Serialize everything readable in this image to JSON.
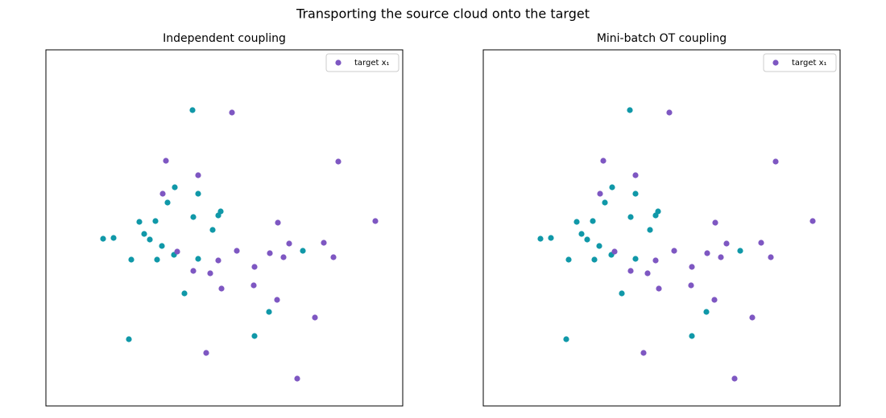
{
  "title": "Transporting the source cloud onto the target",
  "chart_data": [
    {
      "type": "scatter",
      "title": "Independent coupling",
      "xlim": [
        0,
        443
      ],
      "ylim": [
        0,
        443
      ],
      "legend": "upper right",
      "series": [
        {
          "color": "#1098a8",
          "x": [
            182,
            160,
            189,
            151,
            183,
            217,
            214,
            116,
            136,
            207,
            122,
            71,
            84,
            129,
            144,
            159,
            319,
            106,
            138,
            189,
            172,
            277,
            259,
            103
          ],
          "values": [
            368,
            272,
            264,
            253,
            235,
            242,
            237,
            229,
            230,
            219,
            214,
            208,
            209,
            207,
            199,
            188,
            193,
            182,
            182,
            183,
            140,
            117,
            87,
            83
          ]
        },
        {
          "name": "target x₁",
          "color": "#7e57c2",
          "x": [
            231,
            149,
            363,
            189,
            145,
            409,
            288,
            302,
            345,
            237,
            163,
            278,
            295,
            357,
            214,
            259,
            183,
            204,
            218,
            258,
            287,
            334,
            199,
            312
          ],
          "values": [
            365,
            305,
            304,
            287,
            264,
            230,
            228,
            202,
            203,
            193,
            192,
            190,
            185,
            185,
            181,
            173,
            168,
            165,
            146,
            150,
            132,
            110,
            66,
            34
          ]
        }
      ]
    },
    {
      "type": "scatter",
      "title": "Mini-batch OT coupling",
      "xlim": [
        0,
        443
      ],
      "ylim": [
        0,
        443
      ],
      "legend": "upper right",
      "series": [
        {
          "color": "#1098a8",
          "x": [
            182,
            160,
            189,
            151,
            183,
            217,
            214,
            116,
            136,
            207,
            122,
            71,
            84,
            129,
            144,
            159,
            319,
            106,
            138,
            189,
            172,
            277,
            259,
            103
          ],
          "values": [
            368,
            272,
            264,
            253,
            235,
            242,
            237,
            229,
            230,
            219,
            214,
            208,
            209,
            207,
            199,
            188,
            193,
            182,
            182,
            183,
            140,
            117,
            87,
            83
          ]
        },
        {
          "name": "target x₁",
          "color": "#7e57c2",
          "x": [
            231,
            149,
            363,
            189,
            145,
            409,
            288,
            302,
            345,
            237,
            163,
            278,
            295,
            357,
            214,
            259,
            183,
            204,
            218,
            258,
            287,
            334,
            199,
            312
          ],
          "values": [
            365,
            305,
            304,
            287,
            264,
            230,
            228,
            202,
            203,
            193,
            192,
            190,
            185,
            185,
            181,
            173,
            168,
            165,
            146,
            150,
            132,
            110,
            66,
            34
          ]
        }
      ]
    }
  ]
}
